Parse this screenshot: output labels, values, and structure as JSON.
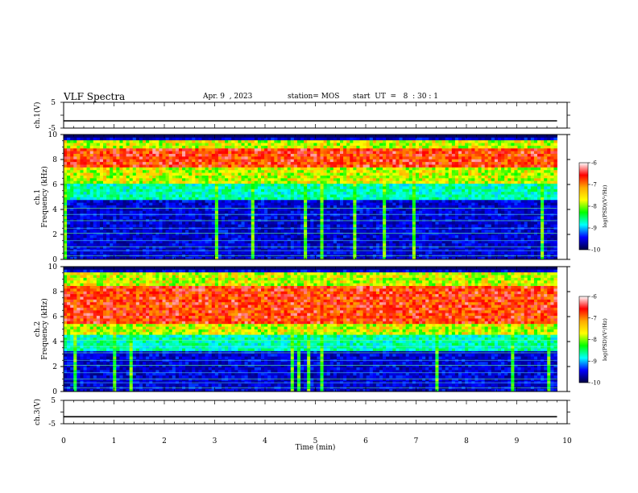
{
  "header": {
    "title": "VLF Spectra",
    "date": "Apr. 9  , 2023",
    "station": "station= MOS",
    "start_ut": "start  UT  =   8  : 30 : 1"
  },
  "chart_data": [
    {
      "type": "line",
      "id": "ch1-voltage",
      "ylabel": "ch.1(V)",
      "ylim": [
        -5,
        5
      ],
      "x": [
        0,
        1,
        2,
        3,
        4,
        5,
        6,
        7,
        8,
        9,
        9.8
      ],
      "values": [
        -2.2,
        -2.2,
        -2.2,
        -2.2,
        -2.2,
        -2.2,
        -2.2,
        -2.2,
        -2.2,
        -2.2,
        -2.2
      ],
      "yticks": [
        "5",
        "-5"
      ]
    },
    {
      "type": "heatmap",
      "id": "ch1-spectrogram",
      "ylabel": "ch.1\nFrequency (kHz)",
      "ylim": [
        0,
        10
      ],
      "xlim": [
        0,
        10
      ],
      "yticks": [
        "0",
        "2",
        "4",
        "6",
        "8",
        "10"
      ],
      "intense_band_khz": [
        6,
        9.5
      ],
      "peak_band_khz": [
        7.5,
        9
      ]
    },
    {
      "type": "heatmap",
      "id": "ch2-spectrogram",
      "ylabel": "ch.2\nFrequency (kHz)",
      "ylim": [
        0,
        10
      ],
      "xlim": [
        0,
        10
      ],
      "yticks": [
        "0",
        "2",
        "4",
        "6",
        "8",
        "10"
      ],
      "intense_band_khz": [
        4.5,
        9.5
      ],
      "peak_band_khz": [
        5.5,
        8.5
      ]
    },
    {
      "type": "line",
      "id": "ch3-voltage",
      "ylabel": "ch.3(V)",
      "ylim": [
        -5,
        5
      ],
      "x": [
        0,
        1,
        2,
        3,
        4,
        5,
        6,
        7,
        8,
        9,
        9.8
      ],
      "values": [
        -2.0,
        -2.0,
        -2.0,
        -2.0,
        -2.0,
        -2.0,
        -2.0,
        -2.0,
        -2.0,
        -2.0,
        -2.0
      ],
      "yticks": [
        "5",
        "-5"
      ]
    }
  ],
  "x_axis": {
    "label": "Time (min)",
    "ticks": [
      "0",
      "1",
      "2",
      "3",
      "4",
      "5",
      "6",
      "7",
      "8",
      "9",
      "10"
    ]
  },
  "colorbar": {
    "label": "log(PSD)(V²/Hz)",
    "ticks": [
      "-6",
      "-7",
      "-8",
      "-9",
      "-10"
    ],
    "colors": [
      "#ffffff",
      "#ff0000",
      "#ffaa00",
      "#ffff00",
      "#00ff00",
      "#00ffff",
      "#0000ff",
      "#000040"
    ]
  }
}
